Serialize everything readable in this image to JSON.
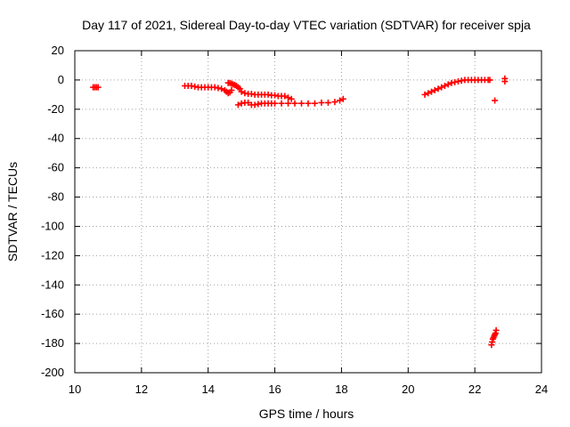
{
  "chart_data": {
    "type": "scatter",
    "title": "Day 117 of 2021, Sidereal Day-to-day VTEC variation (SDTVAR) for receiver spja",
    "xlabel": "GPS time / hours",
    "ylabel": "SDTVAR / TECUs",
    "xlim": [
      10,
      24
    ],
    "ylim": [
      -200,
      20
    ],
    "xticks": [
      10,
      12,
      14,
      16,
      18,
      20,
      22,
      24
    ],
    "yticks": [
      20,
      0,
      -20,
      -40,
      -60,
      -80,
      -100,
      -120,
      -140,
      -160,
      -180,
      -200
    ],
    "grid": true,
    "marker": "plus",
    "series": [
      {
        "name": "SDTVAR",
        "color": "#ff0000",
        "x": [
          10.55,
          10.6,
          10.65,
          10.7,
          13.3,
          13.4,
          13.5,
          13.6,
          13.7,
          13.8,
          13.9,
          14.0,
          14.1,
          14.2,
          14.3,
          14.4,
          14.5,
          14.55,
          14.6,
          14.65,
          14.7,
          14.6,
          14.65,
          14.7,
          14.75,
          14.8,
          14.85,
          14.9,
          14.95,
          15.0,
          15.1,
          15.2,
          15.3,
          15.4,
          15.5,
          15.6,
          15.7,
          15.8,
          15.9,
          16.0,
          16.1,
          16.2,
          16.3,
          16.4,
          16.5,
          14.9,
          15.0,
          15.1,
          15.2,
          15.3,
          15.4,
          15.5,
          15.6,
          15.7,
          15.8,
          15.9,
          16.0,
          16.2,
          16.4,
          16.6,
          16.8,
          17.0,
          17.2,
          17.4,
          17.6,
          17.8,
          17.95,
          18.05,
          20.5,
          20.6,
          20.7,
          20.8,
          20.9,
          21.0,
          21.1,
          21.2,
          21.3,
          21.4,
          21.5,
          21.6,
          21.7,
          21.8,
          21.9,
          22.0,
          22.1,
          22.2,
          22.3,
          22.4,
          22.45,
          22.6,
          22.9,
          22.9,
          22.5,
          22.52,
          22.54,
          22.56,
          22.58,
          22.6,
          22.62,
          22.64
        ],
        "y": [
          -5,
          -5,
          -5,
          -5,
          -4,
          -4,
          -4,
          -4.5,
          -5,
          -5,
          -5,
          -5,
          -5,
          -5,
          -5.5,
          -6,
          -7,
          -8,
          -9,
          -8.5,
          -7,
          -2,
          -2,
          -2.5,
          -3,
          -3.5,
          -4,
          -5,
          -6,
          -8,
          -9,
          -9.5,
          -9.5,
          -10,
          -10,
          -10,
          -10,
          -10,
          -10.5,
          -10.5,
          -11,
          -11,
          -11,
          -12,
          -13,
          -17,
          -16,
          -15.5,
          -15.5,
          -17,
          -17,
          -16.5,
          -16,
          -16,
          -16,
          -16,
          -16,
          -16,
          -16,
          -16,
          -16,
          -16,
          -16,
          -15.5,
          -15.5,
          -15,
          -14,
          -13,
          -10,
          -9,
          -8,
          -7,
          -6,
          -5,
          -4,
          -3,
          -2,
          -1.5,
          -1,
          -0.5,
          0,
          0,
          0,
          0,
          0,
          0,
          0,
          0,
          0,
          -14,
          1,
          -1,
          -181,
          -179,
          -177,
          -176,
          -175,
          -174,
          -173,
          -171
        ]
      }
    ]
  }
}
